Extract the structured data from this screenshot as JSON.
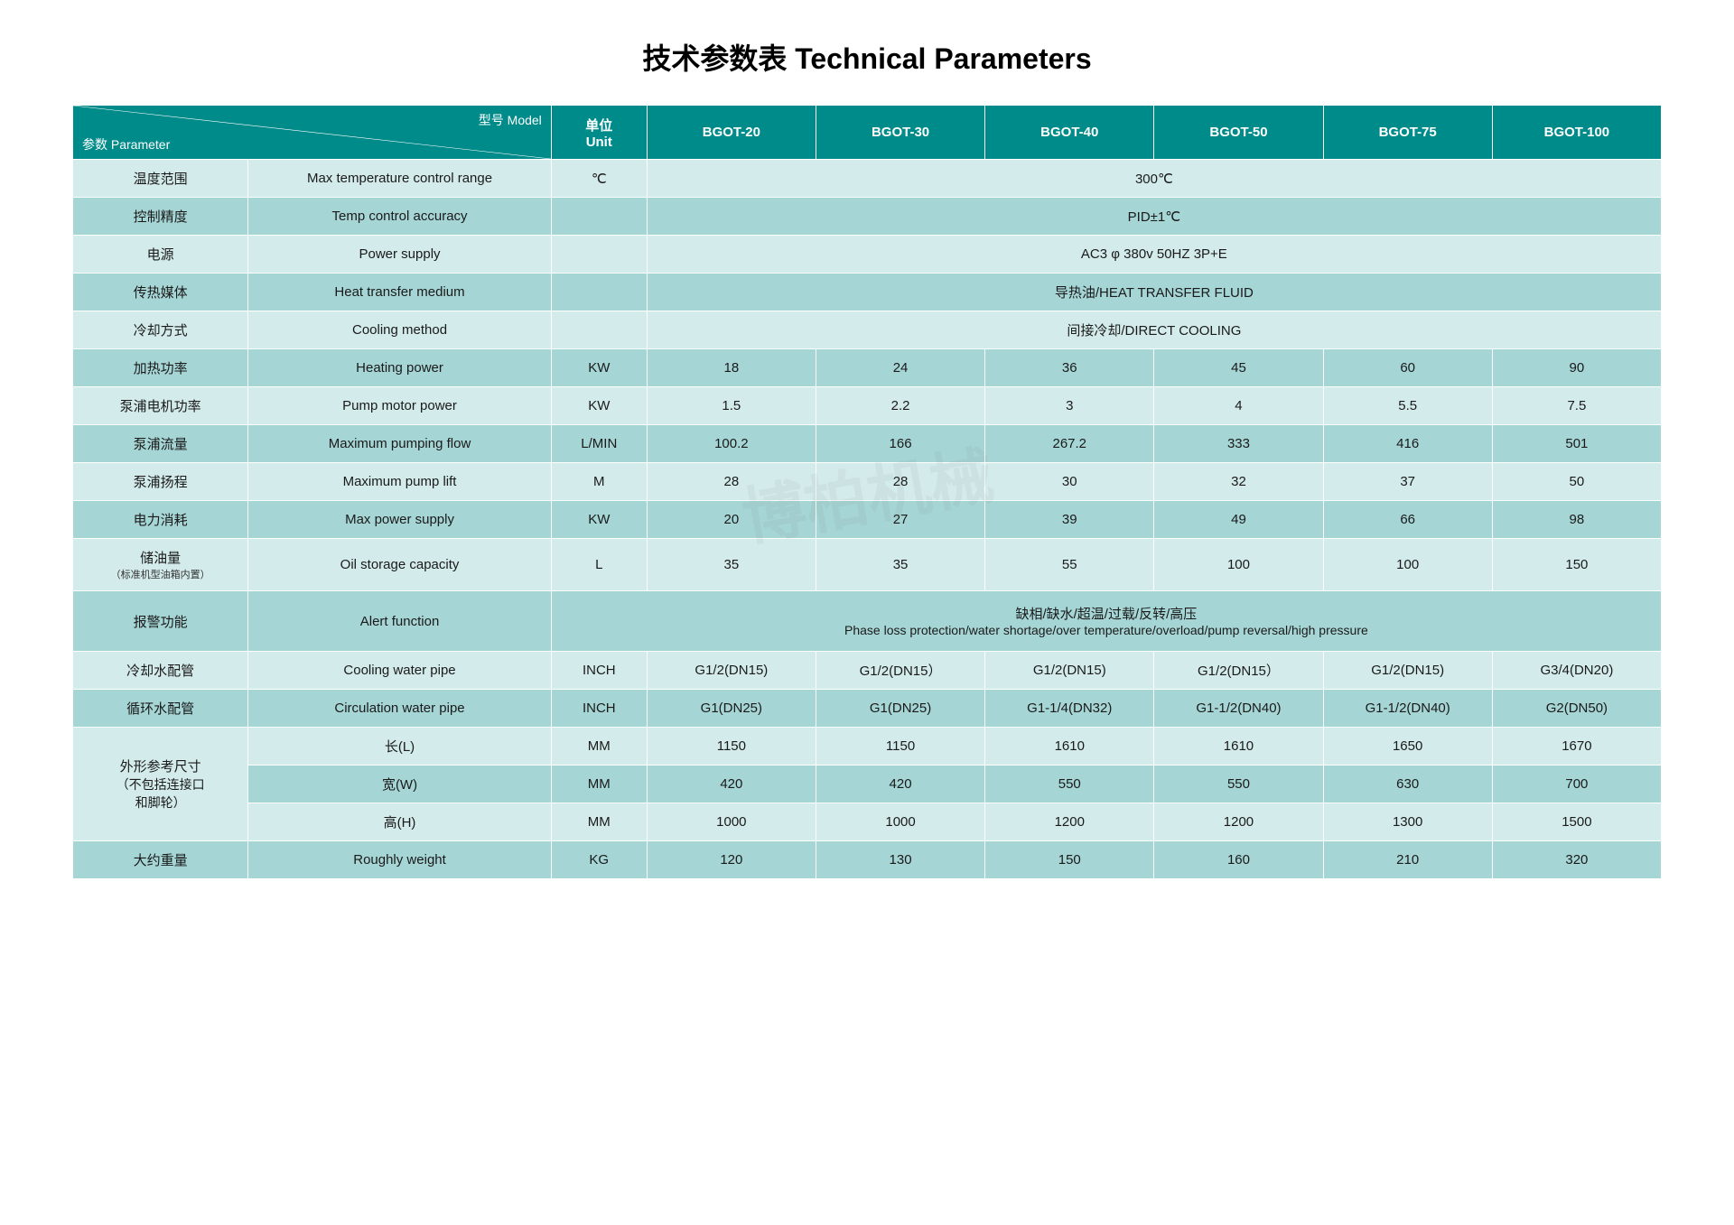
{
  "title": "技术参数表 Technical Parameters",
  "header": {
    "diag_param": "参数 Parameter",
    "diag_model": "型号 Model",
    "unit_cn": "单位",
    "unit_en": "Unit",
    "models": [
      "BGOT-20",
      "BGOT-30",
      "BGOT-40",
      "BGOT-50",
      "BGOT-75",
      "BGOT-100"
    ]
  },
  "rows": [
    {
      "cn": "温度范围",
      "en": "Max temperature control range",
      "unit": "℃",
      "span": true,
      "val": "300℃"
    },
    {
      "cn": "控制精度",
      "en": "Temp control accuracy",
      "unit": "",
      "span": true,
      "val": "PID±1℃"
    },
    {
      "cn": "电源",
      "en": "Power supply",
      "unit": "",
      "span": true,
      "val": "AC3 φ 380v 50HZ 3P+E"
    },
    {
      "cn": "传热媒体",
      "en": "Heat transfer medium",
      "unit": "",
      "span": true,
      "val": "导热油/HEAT TRANSFER FLUID"
    },
    {
      "cn": "冷却方式",
      "en": "Cooling method",
      "unit": "",
      "span": true,
      "val": "间接冷却/DIRECT COOLING"
    },
    {
      "cn": "加热功率",
      "en": "Heating power",
      "unit": "KW",
      "vals": [
        "18",
        "24",
        "36",
        "45",
        "60",
        "90"
      ]
    },
    {
      "cn": "泵浦电机功率",
      "en": "Pump motor power",
      "unit": "KW",
      "vals": [
        "1.5",
        "2.2",
        "3",
        "4",
        "5.5",
        "7.5"
      ]
    },
    {
      "cn": "泵浦流量",
      "en": "Maximum pumping flow",
      "unit": "L/MIN",
      "vals": [
        "100.2",
        "166",
        "267.2",
        "333",
        "416",
        "501"
      ]
    },
    {
      "cn": "泵浦扬程",
      "en": "Maximum pump lift",
      "unit": "M",
      "vals": [
        "28",
        "28",
        "30",
        "32",
        "37",
        "50"
      ]
    },
    {
      "cn": "电力消耗",
      "en": "Max power supply",
      "unit": "KW",
      "vals": [
        "20",
        "27",
        "39",
        "49",
        "66",
        "98"
      ]
    },
    {
      "cn": "储油量",
      "cn_sub": "（标准机型油箱内置）",
      "en": "Oil storage capacity",
      "unit": "L",
      "vals": [
        "35",
        "35",
        "55",
        "100",
        "100",
        "150"
      ]
    },
    {
      "cn": "报警功能",
      "en": "Alert function",
      "unit_merge": true,
      "span": true,
      "val": "缺相/缺水/超温/过载/反转/高压",
      "val_sub": "Phase loss protection/water shortage/over temperature/overload/pump reversal/high pressure"
    },
    {
      "cn": "冷却水配管",
      "en": "Cooling water pipe",
      "unit": "INCH",
      "vals": [
        "G1/2(DN15)",
        "G1/2(DN15）",
        "G1/2(DN15)",
        "G1/2(DN15）",
        "G1/2(DN15)",
        "G3/4(DN20)"
      ]
    },
    {
      "cn": "循环水配管",
      "en": "Circulation water pipe",
      "unit": "INCH",
      "vals": [
        "G1(DN25)",
        "G1(DN25)",
        "G1-1/4(DN32)",
        "G1-1/2(DN40)",
        "G1-1/2(DN40)",
        "G2(DN50)"
      ]
    }
  ],
  "dims": {
    "cn": "外形参考尺寸",
    "cn_sub1": "（不包括连接口",
    "cn_sub2": "和脚轮）",
    "rows": [
      {
        "en": "长(L)",
        "unit": "MM",
        "vals": [
          "1150",
          "1150",
          "1610",
          "1610",
          "1650",
          "1670"
        ]
      },
      {
        "en": "宽(W)",
        "unit": "MM",
        "vals": [
          "420",
          "420",
          "550",
          "550",
          "630",
          "700"
        ]
      },
      {
        "en": "高(H)",
        "unit": "MM",
        "vals": [
          "1000",
          "1000",
          "1200",
          "1200",
          "1300",
          "1500"
        ]
      }
    ]
  },
  "weight": {
    "cn": "大约重量",
    "en": "Roughly weight",
    "unit": "KG",
    "vals": [
      "120",
      "130",
      "150",
      "160",
      "210",
      "320"
    ]
  },
  "colors": {
    "header_bg": "#008b8b",
    "row_light": "#d4ebeb",
    "row_dark": "#a6d5d5",
    "border": "#ffffff"
  },
  "watermark": "博柏机械"
}
